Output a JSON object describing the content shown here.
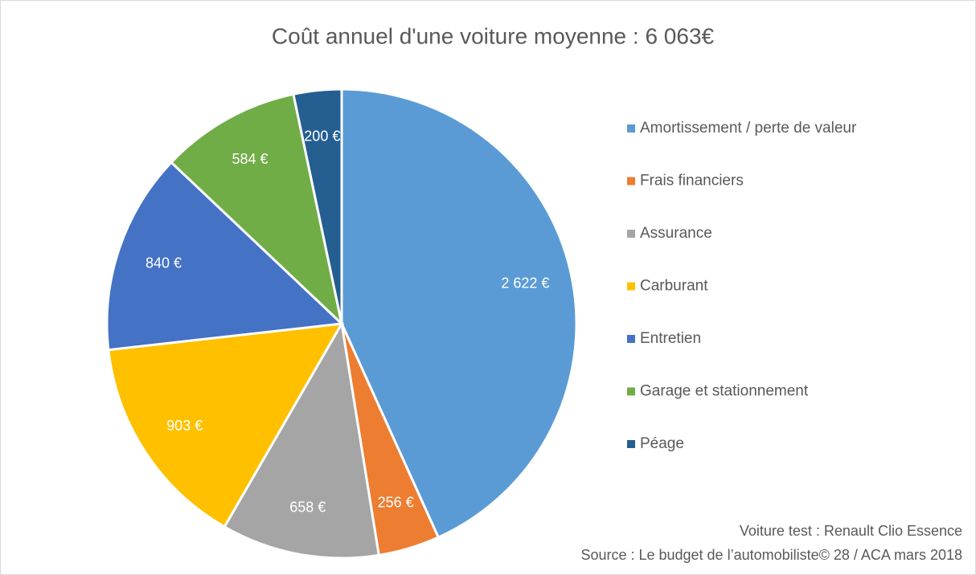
{
  "chart_data": {
    "type": "pie",
    "title": "Coût annuel d'une voiture moyenne : 6 063€",
    "categories": [
      "Amortissement / perte de valeur",
      "Frais financiers",
      "Assurance",
      "Carburant",
      "Entretien",
      "Garage et stationnement",
      "Péage"
    ],
    "values": [
      2622,
      256,
      658,
      903,
      840,
      584,
      200
    ],
    "value_labels": [
      "2 622 €",
      "256 €",
      "658 €",
      "903 €",
      "840 €",
      "584 €",
      "200 €"
    ],
    "colors": [
      "#5b9bd5",
      "#ed7d31",
      "#a5a5a5",
      "#ffc000",
      "#4472c4",
      "#70ad47",
      "#255e91"
    ],
    "legend": "right",
    "annotations": [
      "Voiture test : Renault Clio Essence",
      "Source : Le budget de l’automobiliste© 28 / ACA  mars 2018"
    ]
  }
}
